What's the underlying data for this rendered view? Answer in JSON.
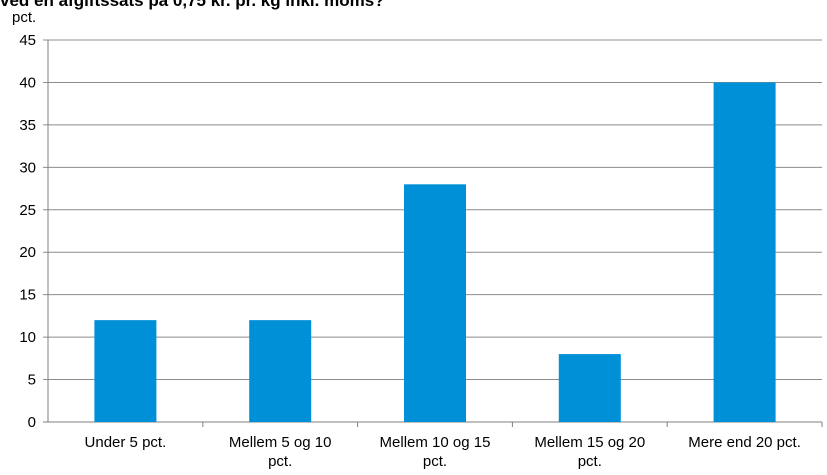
{
  "chart_data": {
    "type": "bar",
    "title": "ved en afgiftssats på 0,75 kr. pr. kg inkl. moms?",
    "ylabel": "pct.",
    "xlabel": "",
    "categories": [
      [
        "Under 5 pct."
      ],
      [
        "Mellem 5 og 10",
        "pct."
      ],
      [
        "Mellem 10 og 15",
        "pct."
      ],
      [
        "Mellem 15 og 20",
        "pct."
      ],
      [
        "Mere end 20 pct."
      ]
    ],
    "values": [
      12,
      12,
      28,
      8,
      40
    ],
    "ylim": [
      0,
      45
    ],
    "yticks": [
      0,
      5,
      10,
      15,
      20,
      25,
      30,
      35,
      40,
      45
    ],
    "grid": true,
    "bar_color": "#0090d8"
  }
}
